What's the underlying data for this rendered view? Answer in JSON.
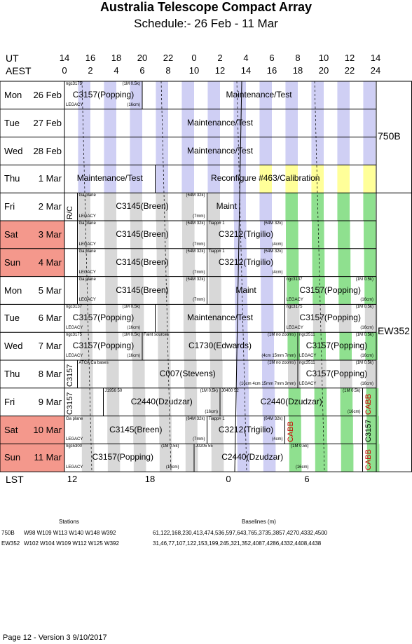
{
  "title": "Australia Telescope Compact Array",
  "subtitle": "Schedule:- 26 Feb - 11 Mar",
  "header": {
    "ut_label": "UT",
    "aest_label": "AEST",
    "lst_label": "LST",
    "ut_ticks": [
      "14",
      "16",
      "18",
      "20",
      "22",
      "0",
      "2",
      "4",
      "6",
      "8",
      "10",
      "12",
      "14"
    ],
    "aest_ticks": [
      "0",
      "2",
      "4",
      "6",
      "8",
      "10",
      "12",
      "14",
      "16",
      "18",
      "20",
      "22",
      "24"
    ],
    "lst_ticks": [
      "12",
      "18",
      "0",
      "6"
    ]
  },
  "days": [
    {
      "weekday": "Mon",
      "date": "26 Feb",
      "weekend": false
    },
    {
      "weekday": "Tue",
      "date": "27 Feb",
      "weekend": false
    },
    {
      "weekday": "Wed",
      "date": "28 Feb",
      "weekend": false
    },
    {
      "weekday": "Thu",
      "date": "1 Mar",
      "weekend": false
    },
    {
      "weekday": "Fri",
      "date": "2 Mar",
      "weekend": false
    },
    {
      "weekday": "Sat",
      "date": "3 Mar",
      "weekend": true
    },
    {
      "weekday": "Sun",
      "date": "4 Mar",
      "weekend": true
    },
    {
      "weekday": "Mon",
      "date": "5 Mar",
      "weekend": false
    },
    {
      "weekday": "Tue",
      "date": "6 Mar",
      "weekend": false
    },
    {
      "weekday": "Wed",
      "date": "7 Mar",
      "weekend": false
    },
    {
      "weekday": "Thu",
      "date": "8 Mar",
      "weekend": false
    },
    {
      "weekday": "Fri",
      "date": "9 Mar",
      "weekend": false
    },
    {
      "weekday": "Sat",
      "date": "10 Mar",
      "weekend": true
    },
    {
      "weekday": "Sun",
      "date": "11 Mar",
      "weekend": true
    }
  ],
  "configs": [
    {
      "name": "750B",
      "row_start": 0,
      "row_end": 3
    },
    {
      "name": "EW352",
      "row_start": 4,
      "row_end": 13
    }
  ],
  "colors": {
    "weekend": "#f4988c",
    "day_stripe_bg": "#cfcff4",
    "pr_stripe": "#cfcff4",
    "grey_stripe": "#d8d8d8",
    "green_stripe": "#8fe08f",
    "yellow_stripe": "#ffff99"
  },
  "blocks": [
    {
      "row": 0,
      "start": 0,
      "end": 6,
      "text": "C3157(Popping)",
      "tl": "ngc3175",
      "tr": "(1M 0.5k)",
      "bl": "LEGACY",
      "br": "(16cm)"
    },
    {
      "row": 0,
      "start": 6,
      "end": 24,
      "text": "Maintenance/Test"
    },
    {
      "row": 1,
      "start": 0,
      "end": 24,
      "text": "Maintenance/Test"
    },
    {
      "row": 2,
      "start": 0,
      "end": 24,
      "text": "Maintenance/Test"
    },
    {
      "row": 3,
      "start": 0,
      "end": 7,
      "text": "Maintenance/Test"
    },
    {
      "row": 3,
      "start": 7,
      "end": 24,
      "text": "Reconfigure #463/Calibration"
    },
    {
      "row": 4,
      "start": 0,
      "end": 1,
      "text": "R/C",
      "vertical": true
    },
    {
      "row": 4,
      "start": 1,
      "end": 11,
      "text": "C3145(Breen)",
      "tl": "Ga plane",
      "tr": "(64M 32k)",
      "bl": "LEGACY",
      "br": "(7mm)"
    },
    {
      "row": 4,
      "start": 11,
      "end": 14,
      "text": "Maint"
    },
    {
      "row": 5,
      "start": 1,
      "end": 11,
      "text": "C3145(Breen)",
      "tl": "Ga plane",
      "tr": "(64M 32k)",
      "bl": "LEGACY",
      "br": "(7mm)"
    },
    {
      "row": 5,
      "start": 11,
      "end": 17,
      "text": "C3212(Trigilio)",
      "tl": "Tiapp# 1",
      "tr": "(64M 32k)",
      "br": "(4cm)"
    },
    {
      "row": 6,
      "start": 1,
      "end": 11,
      "text": "C3145(Breen)",
      "tl": "Ga plane",
      "tr": "(64M 32k)",
      "bl": "LEGACY",
      "br": "(7mm)"
    },
    {
      "row": 6,
      "start": 11,
      "end": 17,
      "text": "C3212(Trigilio)",
      "tl": "Tiapp# 1",
      "tr": "(64M 32k)",
      "br": "(4cm)"
    },
    {
      "row": 7,
      "start": 1,
      "end": 11,
      "text": "C3145(Breen)",
      "tl": "Ga plane",
      "tr": "(64M 32k)",
      "bl": "LEGACY",
      "br": "(7mm)"
    },
    {
      "row": 7,
      "start": 11,
      "end": 17,
      "text": "Maint"
    },
    {
      "row": 7,
      "start": 17,
      "end": 24,
      "text": "C3157(Popping)",
      "tl": "ngc3137",
      "tr": "(1M 0.5k)",
      "bl": "LEGACY",
      "br": "(16cm)"
    },
    {
      "row": 8,
      "start": 0,
      "end": 6,
      "text": "C3157(Popping)",
      "tl": "ngc3137",
      "tr": "(1M 0.5k)",
      "bl": "LEGACY",
      "br": "(16cm)"
    },
    {
      "row": 8,
      "start": 7,
      "end": 17,
      "text": "Maintenance/Test"
    },
    {
      "row": 8,
      "start": 17,
      "end": 24,
      "text": "C3157(Popping)",
      "tl": "ngc3175",
      "tr": "(1M 0.5k)",
      "bl": "LEGACY",
      "br": "(16cm)"
    },
    {
      "row": 9,
      "start": 0,
      "end": 6,
      "text": "C3157(Popping)",
      "tl": "ngc3175",
      "tr": "(1M 0.5k)",
      "bl": "LEGACY",
      "br": "(16cm)"
    },
    {
      "row": 9,
      "start": 6,
      "end": 18,
      "text": "C1730(Edwards)",
      "tl": "Faint sources",
      "tr": "(1M no zooms)",
      "br": "(4cm 15mm 7mm)"
    },
    {
      "row": 9,
      "start": 18,
      "end": 24,
      "text": "C3157(Popping)",
      "tl": "ngc3511",
      "tr": "(1M 0.5k)",
      "bl": "LEGACY",
      "br": "(16cm)"
    },
    {
      "row": 10,
      "start": 0,
      "end": 1,
      "text": "C3157",
      "vertical": true
    },
    {
      "row": 10,
      "start": 1,
      "end": 18,
      "text": "C007(Stevens)",
      "tl": "ATCA Ca bases",
      "tr": "(1M no zooms)",
      "br": "(16cm 4cm 15mm 7mm 3mm)"
    },
    {
      "row": 10,
      "start": 18,
      "end": 24,
      "text": "C3157(Popping)",
      "tl": "ngc3511",
      "tr": "(1M 0.5k)",
      "bl": "LEGACY",
      "br": "(16cm)"
    },
    {
      "row": 11,
      "start": 0,
      "end": 1,
      "text": "C3157",
      "vertical": true
    },
    {
      "row": 11,
      "start": 3,
      "end": 12,
      "text": "C2440(Dzudzar)",
      "tl": "J1956 50",
      "tr": "(1M 0.5k)",
      "br": "(16cm)"
    },
    {
      "row": 11,
      "start": 12,
      "end": 23,
      "text": "C2440(Dzudzar)",
      "tl": "J0400 52",
      "tr": "(1M 0.5k)",
      "br": "(16cm)"
    },
    {
      "row": 11,
      "start": 23,
      "end": 24,
      "text": "CABB",
      "vertical": true,
      "red": true
    },
    {
      "row": 12,
      "start": 0,
      "end": 11,
      "text": "C3145(Breen)",
      "tl": "Ga plane",
      "tr": "(64M 32k)",
      "bl": "LEGACY",
      "br": "(7mm)"
    },
    {
      "row": 12,
      "start": 11,
      "end": 17,
      "text": "C3212(Trigilio)",
      "tl": "Tiapp# 1",
      "tr": "(64M 32k)",
      "br": "(4cm)"
    },
    {
      "row": 12,
      "start": 17,
      "end": 18,
      "text": "CABB",
      "vertical": true,
      "red": true
    },
    {
      "row": 12,
      "start": 23,
      "end": 24,
      "text": "C3157",
      "vertical": true
    },
    {
      "row": 13,
      "start": 0,
      "end": 9,
      "text": "C3157(Popping)",
      "tl": "ngc5300",
      "tr": "(1M 0.5k)",
      "bl": "LEGACY",
      "br": "(16cm)"
    },
    {
      "row": 13,
      "start": 10,
      "end": 19,
      "text": "C2440(Dzudzar)",
      "tl": "J0205 55",
      "tr": "(1M 0.5k)",
      "br": "(16cm)"
    },
    {
      "row": 13,
      "start": 23,
      "end": 24,
      "text": "CABB",
      "vertical": true,
      "red": true
    }
  ],
  "footer": {
    "stations_label": "Stations",
    "baselines_label": "Baselines (m)",
    "rows": [
      {
        "config": "750B",
        "stations": "W98 W109 W113 W140 W148 W392",
        "baselines": "61,122,168,230,413,474,536,597,643,765,3735,3857,4270,4332,4500"
      },
      {
        "config": "EW352",
        "stations": "W102 W104 W109 W112 W125 W392",
        "baselines": "31,46,77,107,122,153,199,245,321,352,4087,4286,4332,4408,4438"
      }
    ],
    "page_info": "Page 12 - Version 3  9/10/2017"
  }
}
